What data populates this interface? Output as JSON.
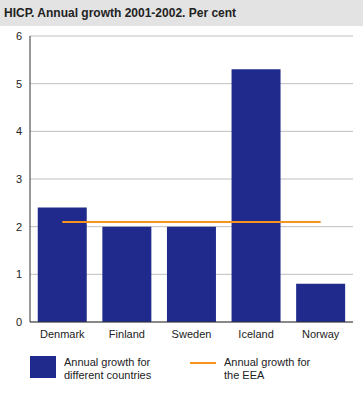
{
  "chart_data": {
    "type": "bar",
    "title": "HICP. Annual growth 2001-2002. Per cent",
    "categories": [
      "Denmark",
      "Finland",
      "Sweden",
      "Iceland",
      "Norway"
    ],
    "series": [
      {
        "name": "Annual growth for different countries",
        "type": "bar",
        "color": "#1f2a8c",
        "values": [
          2.4,
          2.0,
          2.0,
          5.3,
          0.8
        ]
      },
      {
        "name": "Annual growth for the EEA",
        "type": "line",
        "color": "#f7941d",
        "values": [
          2.1,
          2.1,
          2.1,
          2.1,
          2.1
        ]
      }
    ],
    "ylim": [
      0,
      6
    ],
    "yticks": [
      0,
      1,
      2,
      3,
      4,
      5,
      6
    ],
    "grid": true
  }
}
